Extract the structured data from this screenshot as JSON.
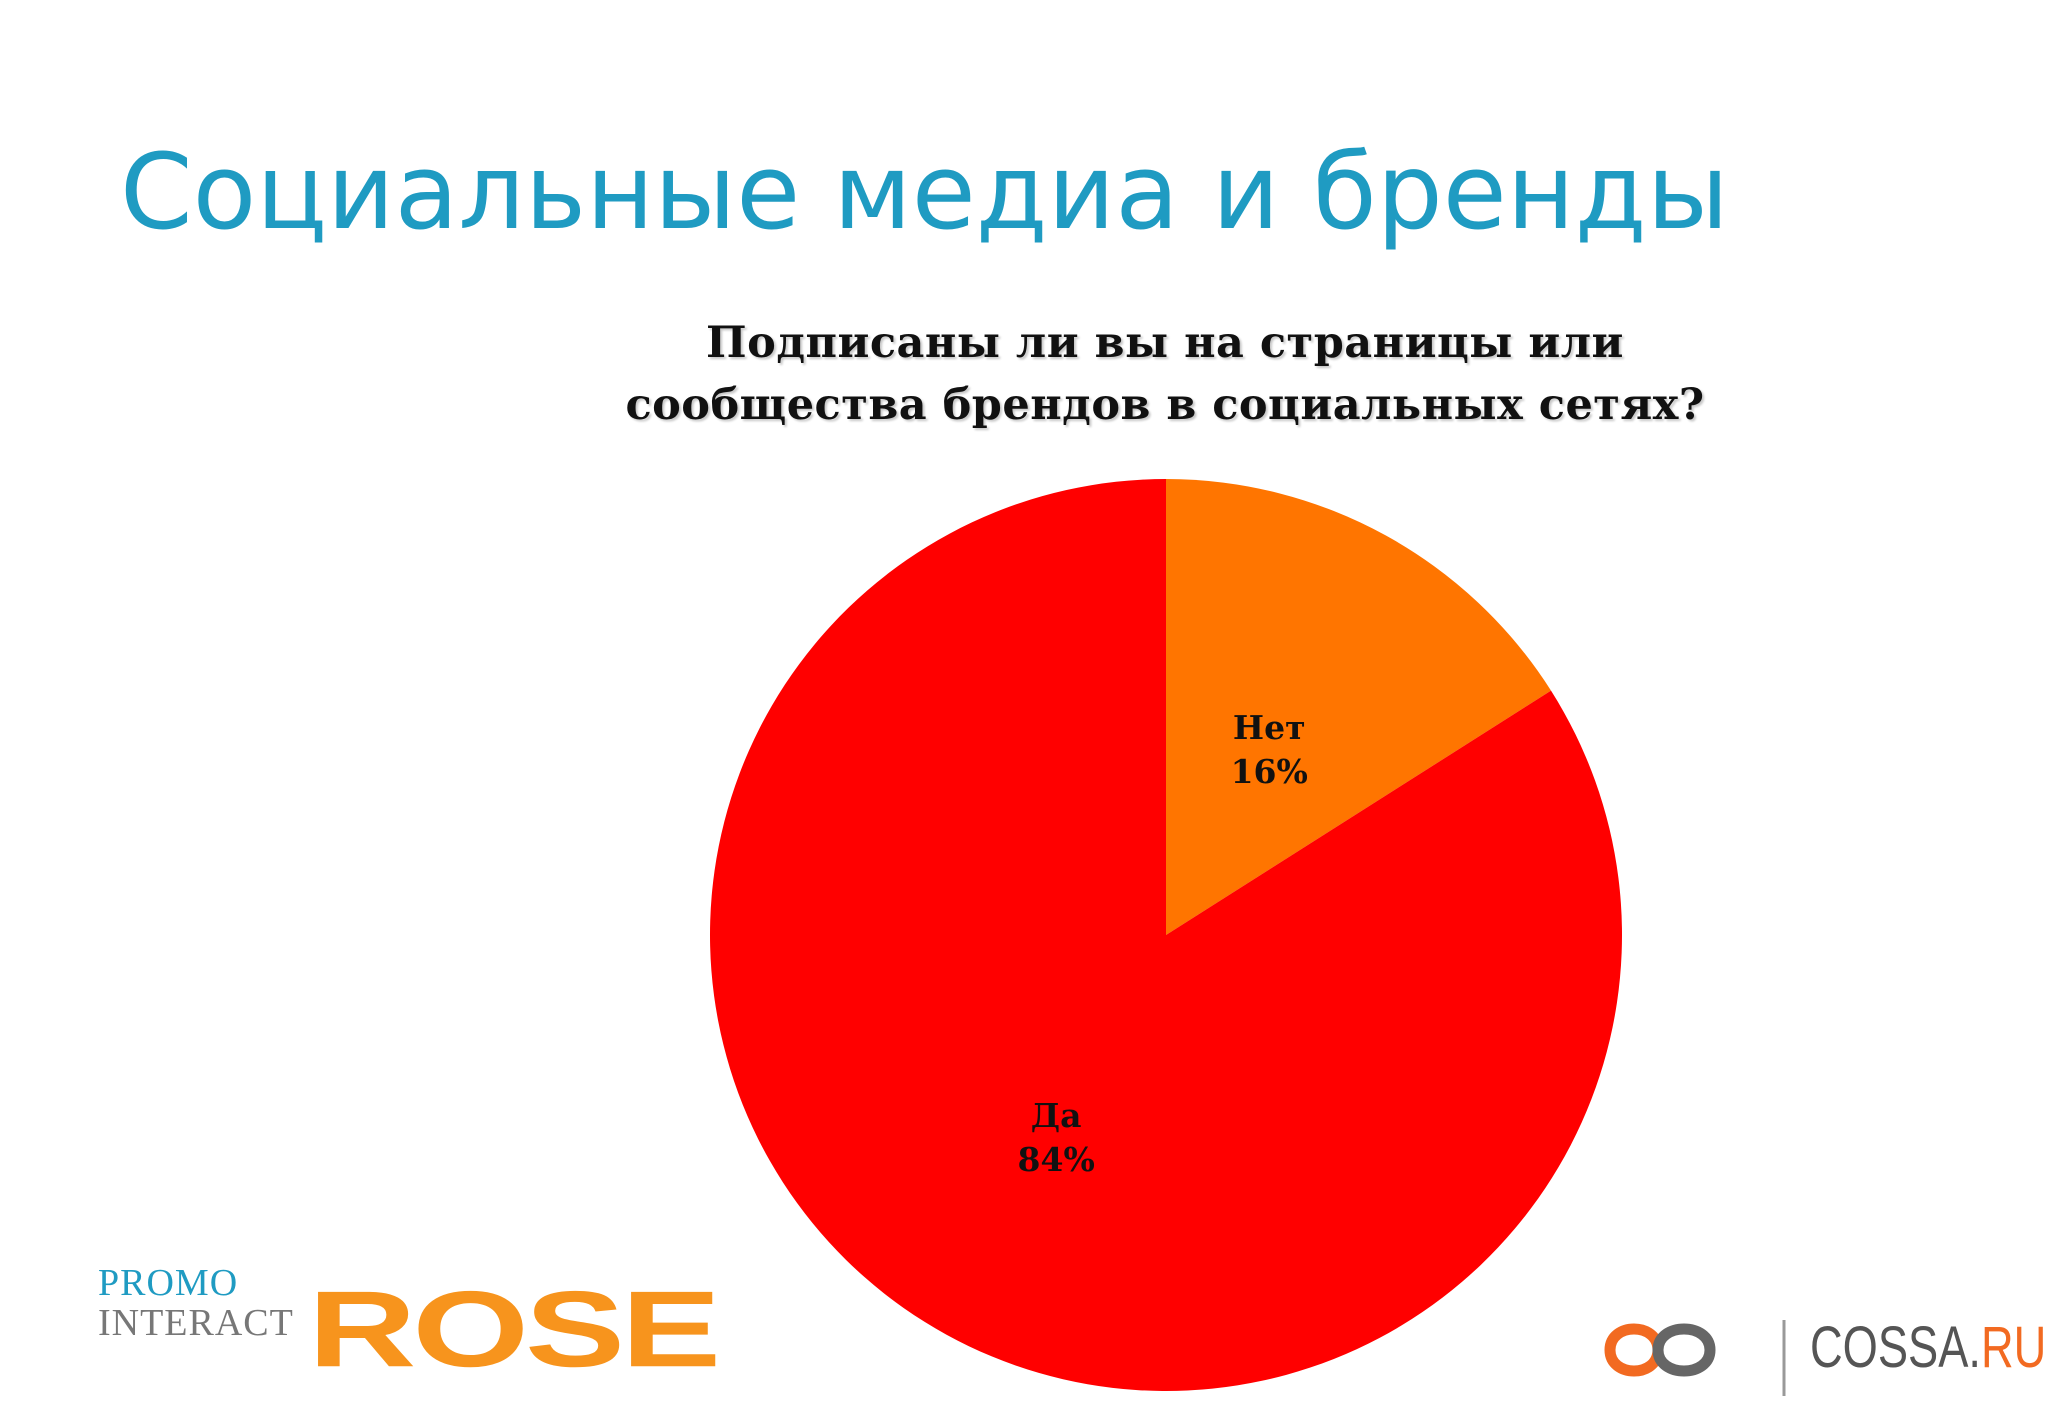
{
  "slide": {
    "title": "Социальные медиа и бренды"
  },
  "chart_data": {
    "type": "pie",
    "title_lines": [
      "Подписаны ли вы на страницы или",
      "сообщества брендов в социальных сетях?"
    ],
    "categories": [
      "Нет",
      "Да"
    ],
    "values": [
      16,
      84
    ],
    "unit": "%",
    "value_labels": [
      "16%",
      "84%"
    ],
    "colors": [
      "#ff7500",
      "#ff0000"
    ],
    "start_angle_deg": 0,
    "direction": "clockwise",
    "legend": "none"
  },
  "logos": {
    "promo": "PROMO",
    "interact": "INTERACT",
    "rose": "ROSE",
    "cossa_main": "COSSA.",
    "cossa_ru": "RU",
    "colors": {
      "blue": "#1f9bc2",
      "orange": "#f7941d",
      "cossa_orange": "#f26a21",
      "gray": "#555555"
    }
  }
}
